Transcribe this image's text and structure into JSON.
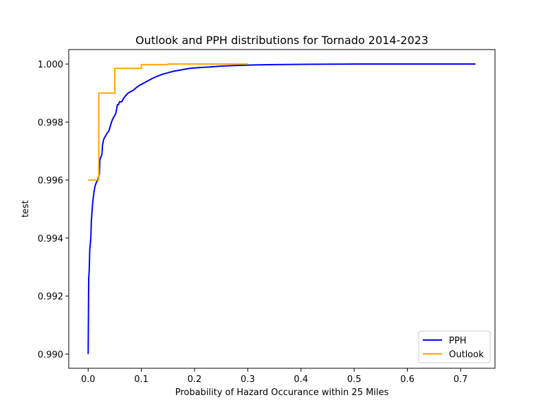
{
  "chart_data": {
    "type": "line",
    "title": "Outlook and PPH distributions for Tornado 2014-2023",
    "xlabel": "Probability of Hazard Occurance within 25 Miles",
    "ylabel": "test",
    "xlim": [
      -0.0365,
      0.7647
    ],
    "ylim": [
      0.98951,
      1.0005
    ],
    "xticks": [
      0.0,
      0.1,
      0.2,
      0.3,
      0.4,
      0.5,
      0.6,
      0.7
    ],
    "xtick_labels": [
      "0.0",
      "0.1",
      "0.2",
      "0.3",
      "0.4",
      "0.5",
      "0.6",
      "0.7"
    ],
    "yticks": [
      0.99,
      0.992,
      0.994,
      0.996,
      0.998,
      1.0
    ],
    "ytick_labels": [
      "0.990",
      "0.992",
      "0.994",
      "0.996",
      "0.998",
      "1.000"
    ],
    "grid": false,
    "legend": "lower-right",
    "series": [
      {
        "name": "PPH",
        "color": "#0000ff",
        "x": [
          0.0,
          0.001,
          0.002,
          0.003,
          0.004,
          0.005,
          0.006,
          0.008,
          0.009,
          0.011,
          0.013,
          0.015,
          0.018,
          0.021,
          0.022,
          0.024,
          0.026,
          0.027,
          0.029,
          0.032,
          0.035,
          0.039,
          0.044,
          0.046,
          0.049,
          0.052,
          0.055,
          0.057,
          0.059,
          0.063,
          0.066,
          0.07,
          0.075,
          0.08,
          0.085,
          0.09,
          0.095,
          0.1,
          0.105,
          0.11,
          0.12,
          0.13,
          0.14,
          0.15,
          0.16,
          0.175,
          0.19,
          0.21,
          0.23,
          0.25,
          0.28,
          0.31,
          0.35,
          0.4,
          0.45,
          0.5,
          0.55,
          0.6,
          0.65,
          0.7,
          0.728
        ],
        "y": [
          0.99,
          0.9926,
          0.9929,
          0.9936,
          0.9938,
          0.994,
          0.9946,
          0.9951,
          0.9953,
          0.9956,
          0.9958,
          0.9959,
          0.996,
          0.9962,
          0.9967,
          0.9968,
          0.9969,
          0.9972,
          0.9974,
          0.9975,
          0.9976,
          0.9977,
          0.998,
          0.9981,
          0.9982,
          0.9983,
          0.9986,
          0.9986,
          0.9987,
          0.9987,
          0.9988,
          0.9989,
          0.999,
          0.99905,
          0.9991,
          0.99918,
          0.99925,
          0.9993,
          0.99935,
          0.9994,
          0.9995,
          0.99958,
          0.99965,
          0.9997,
          0.99975,
          0.9998,
          0.99985,
          0.99988,
          0.9999,
          0.99993,
          0.99995,
          0.99997,
          0.99998,
          0.99999,
          0.999995,
          1.0,
          1.0,
          1.0,
          1.0,
          1.0,
          1.0
        ]
      },
      {
        "name": "Outlook",
        "color": "#ffa500",
        "x": [
          0.0,
          0.02,
          0.02,
          0.05,
          0.05,
          0.1,
          0.1,
          0.15,
          0.15,
          0.3
        ],
        "y": [
          0.996,
          0.996,
          0.999,
          0.999,
          0.99985,
          0.99985,
          0.99998,
          0.99998,
          1.0,
          1.0
        ]
      }
    ]
  }
}
